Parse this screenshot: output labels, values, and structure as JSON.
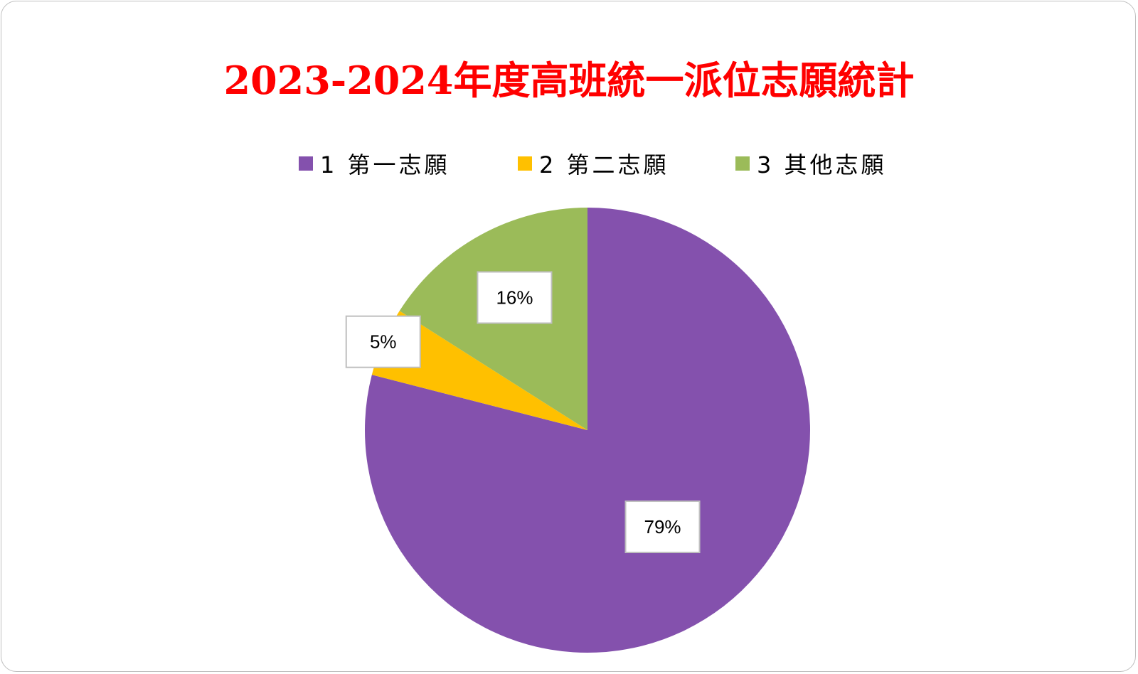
{
  "chart_data": {
    "type": "pie",
    "title": "2023-2024年度高班統一派位志願統計",
    "categories": [
      "1 第一志願",
      "2 第二志願",
      "3 其他志願"
    ],
    "values": [
      79,
      5,
      16
    ],
    "labels": [
      "79%",
      "5%",
      "16%"
    ],
    "colors": [
      "#8451ad",
      "#ffc000",
      "#9bbb59"
    ],
    "legend": "top"
  }
}
